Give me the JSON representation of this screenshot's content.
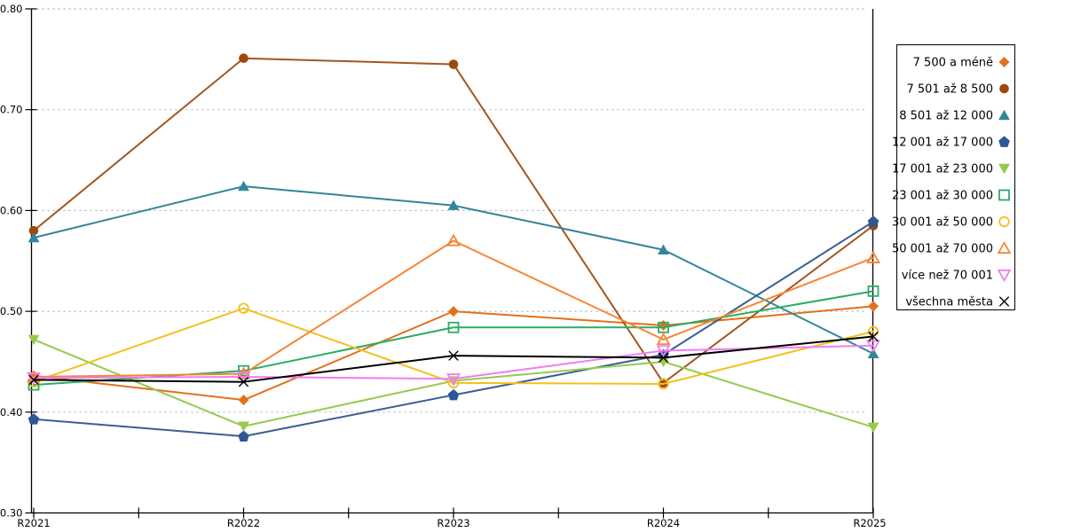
{
  "chart_data": {
    "type": "line",
    "title": "",
    "xlabel": "",
    "ylabel": "",
    "x_categories": [
      "R2021",
      "R2022",
      "R2023",
      "R2024",
      "R2025"
    ],
    "ylim": [
      0.3,
      0.8
    ],
    "ytick_step": 0.1,
    "ytick_labels": [
      "0.30",
      "0.40",
      "0.50",
      "0.60",
      "0.70",
      "0.80"
    ],
    "grid": "horizontal-dotted",
    "grid_color": "#b3b3b3",
    "axis_color": "#000000",
    "legend_position": "right",
    "series": [
      {
        "name": "7 500 a méně",
        "marker": "diamond",
        "fill": "solid",
        "color": "#e4701b",
        "values": [
          0.436,
          0.412,
          0.5,
          0.486,
          0.505
        ]
      },
      {
        "name": "7 501 až 8 500",
        "marker": "circle",
        "fill": "solid",
        "color": "#9c4a0c",
        "line_color": "#a3571e",
        "values": [
          0.58,
          0.751,
          0.745,
          0.429,
          0.585
        ]
      },
      {
        "name": "8 501 až 12 000",
        "marker": "triangle-up",
        "fill": "solid",
        "color": "#31859c",
        "values": [
          0.573,
          0.624,
          0.605,
          0.561,
          0.458
        ]
      },
      {
        "name": "12 001 až 17 000",
        "marker": "pentagon",
        "fill": "solid",
        "color": "#2f5796",
        "line_color": "#3a5d94",
        "values": [
          0.393,
          0.376,
          0.417,
          0.457,
          0.589
        ]
      },
      {
        "name": "17 001 až 23 000",
        "marker": "triangle-down",
        "fill": "solid",
        "color": "#97c94e",
        "values": [
          0.472,
          0.386,
          0.431,
          0.45,
          0.385
        ]
      },
      {
        "name": "23 001 až 30 000",
        "marker": "square",
        "fill": "open",
        "color": "#2bab66",
        "values": [
          0.427,
          0.441,
          0.484,
          0.484,
          0.52
        ]
      },
      {
        "name": "30 001 až 50 000",
        "marker": "circle",
        "fill": "open",
        "color": "#f2c11d",
        "values": [
          0.43,
          0.503,
          0.429,
          0.428,
          0.48
        ]
      },
      {
        "name": "50 001 až 70 000",
        "marker": "triangle-up",
        "fill": "open",
        "color": "#f58634",
        "values": [
          0.435,
          0.438,
          0.57,
          0.472,
          0.553
        ]
      },
      {
        "name": "více než 70 001",
        "marker": "triangle-down",
        "fill": "open",
        "color": "#f07df0",
        "values": [
          0.434,
          0.435,
          0.433,
          0.461,
          0.466
        ]
      },
      {
        "name": "všechna města",
        "marker": "x",
        "fill": "open",
        "color": "#000000",
        "values": [
          0.432,
          0.43,
          0.456,
          0.454,
          0.475
        ]
      }
    ]
  }
}
